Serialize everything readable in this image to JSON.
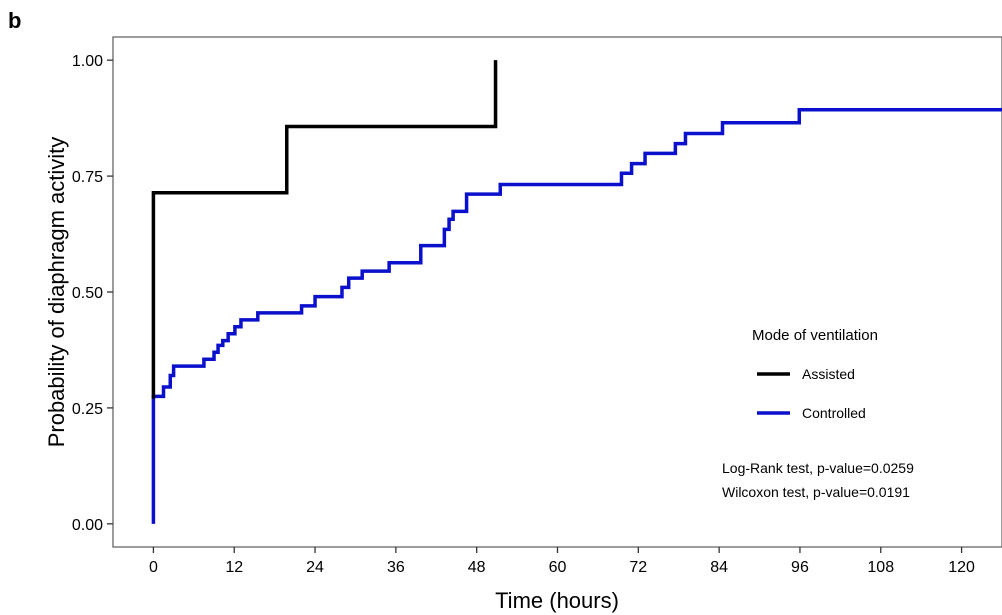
{
  "panel_label": "b",
  "chart_data": {
    "type": "line",
    "step": true,
    "title": "",
    "xlabel": "Time (hours)",
    "ylabel": "Probability of diaphragm activity",
    "xlim": [
      -6,
      126
    ],
    "ylim": [
      -0.05,
      1.05
    ],
    "x_ticks": [
      0,
      12,
      24,
      36,
      48,
      60,
      72,
      84,
      96,
      108,
      120
    ],
    "y_ticks": [
      0.0,
      0.25,
      0.5,
      0.75,
      1.0
    ],
    "x_tick_labels": [
      "0",
      "12",
      "24",
      "36",
      "48",
      "60",
      "72",
      "84",
      "96",
      "108",
      "120"
    ],
    "y_tick_labels": [
      "0.00",
      "0.25",
      "0.50",
      "0.75",
      "1.00"
    ],
    "grid": false,
    "legend": {
      "title": "Mode of ventilation",
      "position": "right"
    },
    "series": [
      {
        "name": "Assisted",
        "color": "#000000",
        "points": [
          [
            0,
            0.27
          ],
          [
            0,
            0.714
          ],
          [
            19.8,
            0.714
          ],
          [
            19.8,
            0.857
          ],
          [
            50.8,
            0.857
          ],
          [
            50.8,
            1.0
          ]
        ]
      },
      {
        "name": "Controlled",
        "color": "#0a10cc",
        "points": [
          [
            0,
            0.0
          ],
          [
            0,
            0.275
          ],
          [
            1.5,
            0.275
          ],
          [
            1.5,
            0.295
          ],
          [
            2.5,
            0.295
          ],
          [
            2.5,
            0.32
          ],
          [
            3,
            0.32
          ],
          [
            3,
            0.34
          ],
          [
            7.5,
            0.34
          ],
          [
            7.5,
            0.355
          ],
          [
            9,
            0.355
          ],
          [
            9,
            0.37
          ],
          [
            9.6,
            0.37
          ],
          [
            9.6,
            0.385
          ],
          [
            10.3,
            0.385
          ],
          [
            10.3,
            0.395
          ],
          [
            11.1,
            0.395
          ],
          [
            11.1,
            0.41
          ],
          [
            12.1,
            0.41
          ],
          [
            12.1,
            0.425
          ],
          [
            13,
            0.425
          ],
          [
            13,
            0.44
          ],
          [
            15.5,
            0.44
          ],
          [
            15.5,
            0.455
          ],
          [
            22,
            0.455
          ],
          [
            22,
            0.47
          ],
          [
            24,
            0.47
          ],
          [
            24,
            0.49
          ],
          [
            28,
            0.49
          ],
          [
            28,
            0.51
          ],
          [
            29,
            0.51
          ],
          [
            29,
            0.53
          ],
          [
            31,
            0.53
          ],
          [
            31,
            0.545
          ],
          [
            35,
            0.545
          ],
          [
            35,
            0.563
          ],
          [
            39.7,
            0.563
          ],
          [
            39.7,
            0.6
          ],
          [
            43.2,
            0.6
          ],
          [
            43.2,
            0.635
          ],
          [
            43.9,
            0.635
          ],
          [
            43.9,
            0.657
          ],
          [
            44.5,
            0.657
          ],
          [
            44.5,
            0.674
          ],
          [
            46.5,
            0.674
          ],
          [
            46.5,
            0.711
          ],
          [
            51.5,
            0.711
          ],
          [
            51.5,
            0.732
          ],
          [
            69.5,
            0.732
          ],
          [
            69.5,
            0.756
          ],
          [
            71,
            0.756
          ],
          [
            71,
            0.777
          ],
          [
            73,
            0.777
          ],
          [
            73,
            0.799
          ],
          [
            77.5,
            0.799
          ],
          [
            77.5,
            0.82
          ],
          [
            79,
            0.82
          ],
          [
            79,
            0.842
          ],
          [
            84.5,
            0.842
          ],
          [
            84.5,
            0.865
          ],
          [
            95.9,
            0.865
          ],
          [
            95.9,
            0.893
          ],
          [
            126,
            0.893
          ]
        ]
      }
    ],
    "annotations": [
      "Log-Rank test, p-value=0.0259",
      "Wilcoxon test, p-value=0.0191"
    ]
  }
}
